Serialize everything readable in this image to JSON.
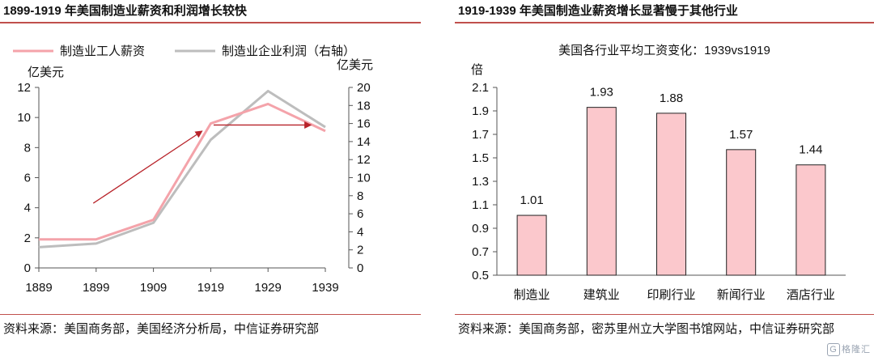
{
  "left": {
    "title": "1899-1919 年美国制造业薪资和利润增长较快",
    "source": "资料来源：美国商务部，美国经济分析局，中信证券研究部"
  },
  "right": {
    "title": "1919-1939 年美国制造业薪资增长显著慢于其他行业",
    "source": "资料来源：美国商务部，密苏里州立大学图书馆网站，中信证券研究部"
  },
  "watermark": "格隆汇",
  "colors": {
    "accent": "#c0504d",
    "wage": "#f4a3aa",
    "profit": "#bdbdbd",
    "arrow": "#b8232a",
    "bar_fill": "#fbc8cc",
    "bar_stroke": "#222222"
  },
  "chart_data": [
    {
      "type": "line",
      "x": [
        "1889",
        "1899",
        "1909",
        "1919",
        "1929",
        "1939"
      ],
      "series": [
        {
          "name": "制造业工人薪资",
          "axis": "left",
          "values": [
            1.9,
            1.9,
            3.2,
            9.6,
            10.9,
            9.1
          ]
        },
        {
          "name": "制造业企业利润（右轴）",
          "axis": "right",
          "values": [
            2.3,
            2.7,
            5.0,
            14.2,
            19.6,
            15.6
          ]
        }
      ],
      "ylabel": "亿美元",
      "ylabel_right": "亿美元",
      "ylim": [
        0,
        12
      ],
      "yticks": [
        0,
        2,
        4,
        6,
        8,
        10,
        12
      ],
      "ylim_right": [
        0,
        20
      ],
      "yticks_right": [
        0,
        2,
        4,
        6,
        8,
        10,
        12,
        14,
        16,
        18,
        20
      ],
      "grid": false,
      "legend": "top",
      "annotations": [
        {
          "type": "arrow",
          "from": [
            "1898.5",
            4.3
          ],
          "to": [
            "1917.5",
            9.1
          ]
        },
        {
          "type": "arrow",
          "from": [
            "1919.5",
            9.5
          ],
          "to": [
            "1936.5",
            9.5
          ]
        }
      ]
    },
    {
      "type": "bar",
      "title": "美国各行业平均工资变化：1939vs1919",
      "categories": [
        "制造业",
        "建筑业",
        "印刷行业",
        "新闻行业",
        "酒店行业"
      ],
      "values": [
        1.01,
        1.93,
        1.88,
        1.57,
        1.44
      ],
      "ylabel": "倍",
      "ylim": [
        0.5,
        2.1
      ],
      "yticks": [
        0.5,
        0.7,
        0.9,
        1.1,
        1.3,
        1.5,
        1.7,
        1.9,
        2.1
      ],
      "grid": false
    }
  ]
}
